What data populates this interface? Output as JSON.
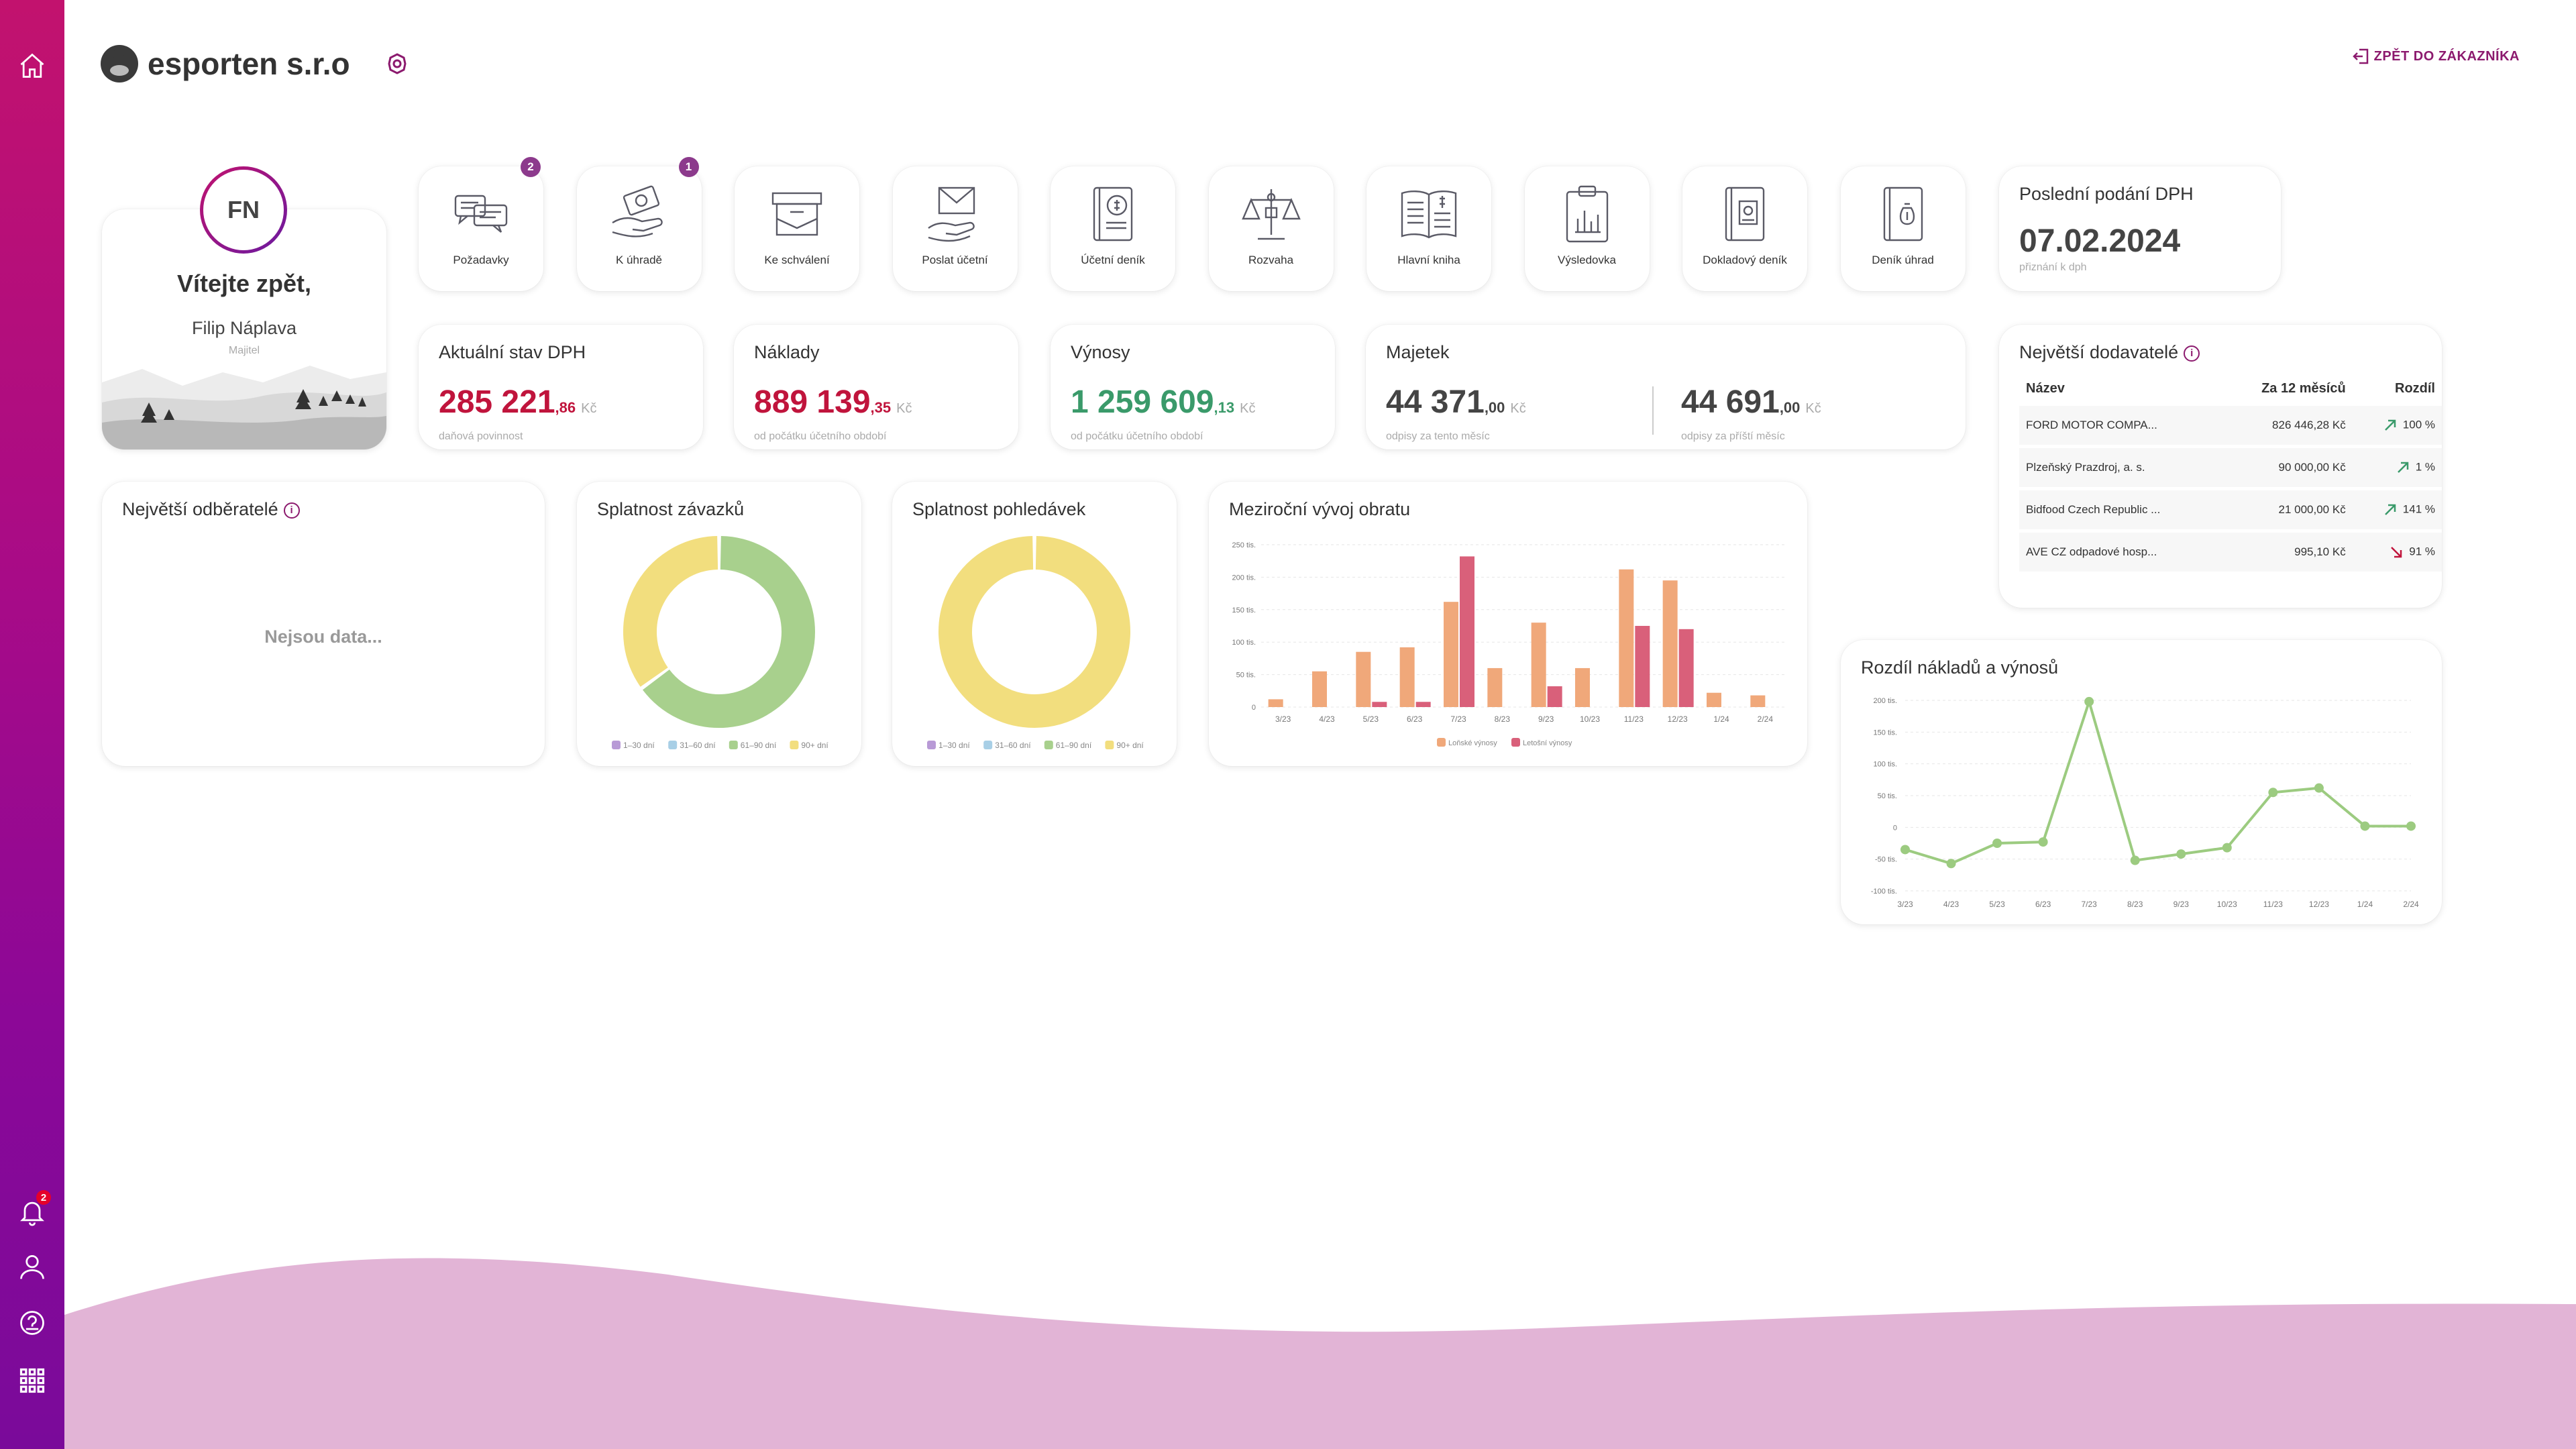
{
  "sidebar": {
    "notification_count": "2",
    "icons": [
      "home-icon",
      "bell-icon",
      "user-icon",
      "help-icon",
      "apps-grid-icon"
    ]
  },
  "header": {
    "company": "esporten s.r.o",
    "back_label": "ZPĚT DO ZÁKAZNÍKA"
  },
  "welcome": {
    "initials": "FN",
    "title": "Vítejte zpět,",
    "name": "Filip Náplava",
    "role": "Majitel"
  },
  "tiles": [
    {
      "label": "Požadavky",
      "badge": "2",
      "icon": "chat-icon"
    },
    {
      "label": "K úhradě",
      "badge": "1",
      "icon": "pay-icon"
    },
    {
      "label": "Ke schválení",
      "badge": "",
      "icon": "inbox-icon"
    },
    {
      "label": "Poslat účetní",
      "badge": "",
      "icon": "mail-hand-icon"
    },
    {
      "label": "Účetní deník",
      "badge": "",
      "icon": "ledger-icon"
    },
    {
      "label": "Rozvaha",
      "badge": "",
      "icon": "scales-icon"
    },
    {
      "label": "Hlavní kniha",
      "badge": "",
      "icon": "book-icon"
    },
    {
      "label": "Výsledovka",
      "badge": "",
      "icon": "clipboard-chart-icon"
    },
    {
      "label": "Dokladový deník",
      "badge": "",
      "icon": "document-book-icon"
    },
    {
      "label": "Deník úhrad",
      "badge": "",
      "icon": "payment-book-icon"
    }
  ],
  "last_vat": {
    "title": "Poslední podání DPH",
    "date": "07.02.2024",
    "sub": "přiznání k dph"
  },
  "stats": {
    "dph": {
      "title": "Aktuální stav DPH",
      "int": "285 221",
      "dec": ",86",
      "cur": "Kč",
      "sub": "daňová povinnost"
    },
    "naklady": {
      "title": "Náklady",
      "int": "889 139",
      "dec": ",35",
      "cur": "Kč",
      "sub": "od počátku účetního období"
    },
    "vynosy": {
      "title": "Výnosy",
      "int": "1 259 609",
      "dec": ",13",
      "cur": "Kč",
      "sub": "od počátku účetního období"
    },
    "majetek": {
      "title": "Majetek",
      "a_int": "44 371",
      "a_dec": ",00",
      "a_cur": "Kč",
      "a_sub": "odpisy za tento měsíc",
      "b_int": "44 691",
      "b_dec": ",00",
      "b_cur": "Kč",
      "b_sub": "odpisy za příští měsíc"
    }
  },
  "suppliers": {
    "title": "Největší dodavatelé",
    "columns": [
      "Název",
      "Za 12 měsíců",
      "Rozdíl"
    ],
    "rows": [
      {
        "name": "FORD MOTOR COMPA...",
        "amount": "826 446,28 Kč",
        "diff": "100 %",
        "dir": "up"
      },
      {
        "name": "Plzeňský Prazdroj, a. s.",
        "amount": "90 000,00 Kč",
        "diff": "1 %",
        "dir": "up"
      },
      {
        "name": "Bidfood Czech Republic ...",
        "amount": "21 000,00 Kč",
        "diff": "141 %",
        "dir": "up"
      },
      {
        "name": "AVE CZ odpadové hosp...",
        "amount": "995,10 Kč",
        "diff": "91 %",
        "dir": "down"
      }
    ]
  },
  "customers": {
    "title": "Největší odběratelé",
    "empty": "Nejsou data..."
  },
  "donut_labels": [
    "1–30 dní",
    "31–60 dní",
    "61–90 dní",
    "90+ dní"
  ],
  "colors": {
    "purple": "#b89ad6",
    "blue": "#a8cfe6",
    "green": "#a8d08d",
    "yellow": "#f2de7e",
    "orange": "#f0a87a",
    "red": "#d9607a",
    "line": "#9ccb80"
  },
  "chart_data": [
    {
      "type": "pie",
      "title": "Splatnost závazků",
      "categories": [
        "1–30 dní",
        "31–60 dní",
        "61–90 dní",
        "90+ dní"
      ],
      "values": [
        0,
        0,
        65,
        35
      ]
    },
    {
      "type": "pie",
      "title": "Splatnost pohledávek",
      "categories": [
        "1–30 dní",
        "31–60 dní",
        "61–90 dní",
        "90+ dní"
      ],
      "values": [
        0,
        0,
        0,
        100
      ]
    },
    {
      "type": "bar",
      "title": "Meziroční vývoj obratu",
      "categories": [
        "3/23",
        "4/23",
        "5/23",
        "6/23",
        "7/23",
        "8/23",
        "9/23",
        "10/23",
        "11/23",
        "12/23",
        "1/24",
        "2/24"
      ],
      "yticks": [
        "0",
        "50 tis.",
        "100 tis.",
        "150 tis.",
        "200 tis.",
        "250 tis."
      ],
      "ylim": [
        0,
        250000
      ],
      "series": [
        {
          "name": "Loňské výnosy",
          "values": [
            12000,
            55000,
            85000,
            92000,
            162000,
            60000,
            130000,
            60000,
            212000,
            195000,
            22000,
            18000
          ]
        },
        {
          "name": "Letošní výnosy",
          "values": [
            0,
            0,
            8000,
            8000,
            232000,
            0,
            32000,
            0,
            125000,
            120000,
            0,
            0
          ]
        }
      ]
    },
    {
      "type": "line",
      "title": "Rozdíl nákladů a výnosů",
      "categories": [
        "3/23",
        "4/23",
        "5/23",
        "6/23",
        "7/23",
        "8/23",
        "9/23",
        "10/23",
        "11/23",
        "12/23",
        "1/24",
        "2/24"
      ],
      "yticks": [
        "-100 tis.",
        "-50 tis.",
        "0",
        "50 tis.",
        "100 tis.",
        "150 tis.",
        "200 tis."
      ],
      "ylim": [
        -100000,
        200000
      ],
      "values": [
        -35000,
        -57000,
        -25000,
        -23000,
        198000,
        -52000,
        -42000,
        -32000,
        55000,
        62000,
        2000,
        2000
      ]
    }
  ]
}
